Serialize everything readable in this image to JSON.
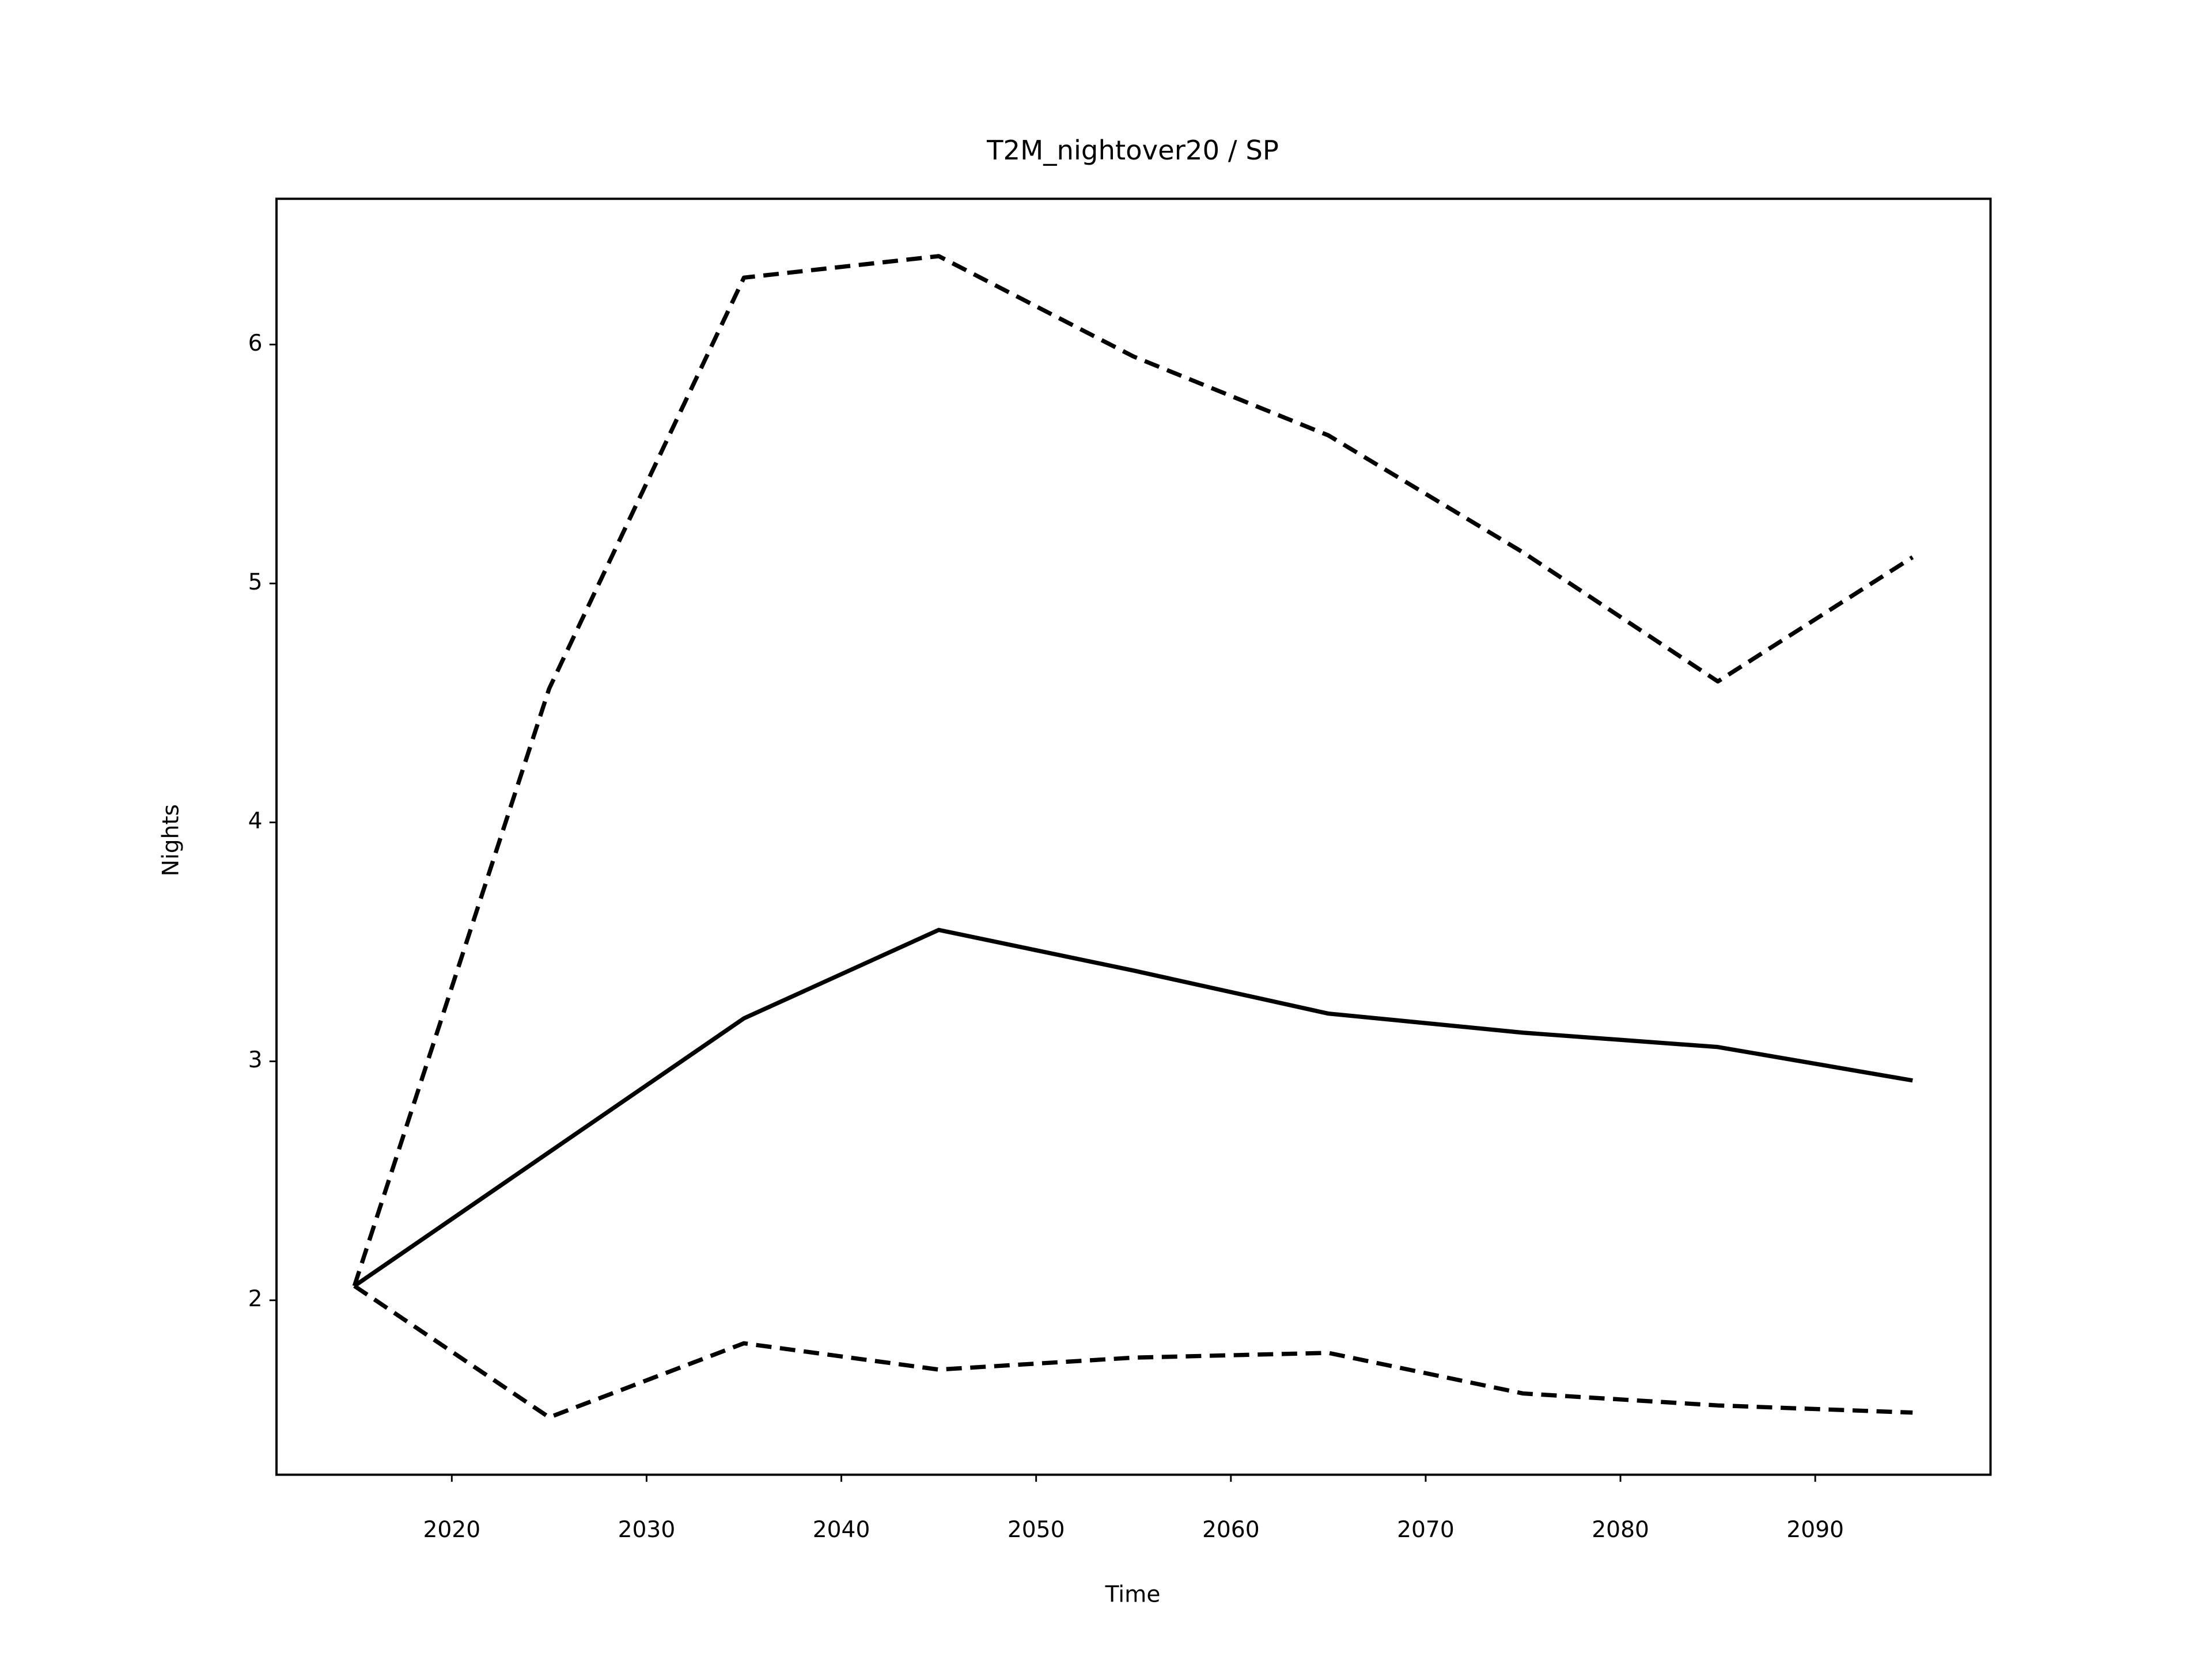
{
  "chart_data": {
    "type": "line",
    "title": "T2M_nightover20 / SP",
    "xlabel": "Time",
    "ylabel": "Nights",
    "x": [
      2015,
      2025,
      2035,
      2045,
      2055,
      2065,
      2075,
      2085,
      2095
    ],
    "series": [
      {
        "color": "#000000",
        "style": "solid",
        "values": [
          2.06,
          2.62,
          3.18,
          3.55,
          3.38,
          3.2,
          3.12,
          3.06,
          2.92
        ]
      },
      {
        "color": "#000000",
        "style": "dashed",
        "values": [
          2.06,
          4.56,
          6.28,
          6.37,
          5.95,
          5.62,
          5.13,
          4.59,
          5.11
        ]
      },
      {
        "color": "#000000",
        "style": "dashed",
        "values": [
          2.06,
          1.51,
          1.82,
          1.71,
          1.76,
          1.78,
          1.61,
          1.56,
          1.53
        ]
      }
    ],
    "xlim": [
      2011,
      2099
    ],
    "xticks": [
      2020,
      2030,
      2040,
      2050,
      2060,
      2070,
      2080,
      2090
    ],
    "ylim": [
      1.27,
      6.61
    ],
    "yticks": [
      2,
      3,
      4,
      5,
      6
    ],
    "grid": false
  }
}
